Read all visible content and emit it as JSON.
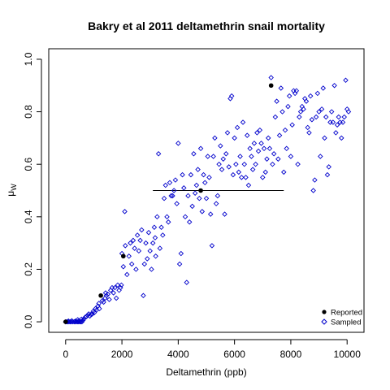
{
  "chart_data": {
    "type": "scatter",
    "title": "Bakry et al 2011 deltamethrin snail mortality",
    "xlabel": "Deltamethrin (ppb)",
    "ylabel": "μ_W",
    "xlim": [
      -600,
      10600
    ],
    "ylim": [
      -0.04,
      1.04
    ],
    "x_ticks": [
      0,
      2000,
      4000,
      6000,
      8000,
      10000
    ],
    "x_tick_labels": [
      "0",
      "2000",
      "4000",
      "6000",
      "8000",
      "10000"
    ],
    "y_ticks": [
      0.0,
      0.2,
      0.4,
      0.6,
      0.8,
      1.0
    ],
    "y_tick_labels": [
      "0.0",
      "0.2",
      "0.4",
      "0.6",
      "0.8",
      "1.0"
    ],
    "grid": false,
    "legend_position": "bottom-right",
    "colors": {
      "reported": "#000000",
      "sampled": "#0000cc"
    },
    "series": [
      {
        "name": "Reported",
        "marker": "filled-circle",
        "points": [
          {
            "x": 0,
            "y": 0.0
          },
          {
            "x": 1250,
            "y": 0.1
          },
          {
            "x": 2050,
            "y": 0.25
          },
          {
            "x": 4800,
            "y": 0.5
          },
          {
            "x": 7300,
            "y": 0.9
          }
        ]
      },
      {
        "name": "Sampled",
        "marker": "open-diamond",
        "points": [
          [
            0,
            0
          ],
          [
            0,
            0
          ],
          [
            40,
            0
          ],
          [
            80,
            0
          ],
          [
            120,
            0
          ],
          [
            160,
            0
          ],
          [
            200,
            0
          ],
          [
            250,
            0
          ],
          [
            300,
            0
          ],
          [
            330,
            0
          ],
          [
            380,
            0
          ],
          [
            420,
            0
          ],
          [
            460,
            0
          ],
          [
            500,
            0
          ],
          [
            540,
            0
          ],
          [
            580,
            0
          ],
          [
            100,
            0.003
          ],
          [
            220,
            0.004
          ],
          [
            350,
            0.003
          ],
          [
            480,
            0.004
          ],
          [
            620,
            0.006
          ],
          [
            430,
            0.008
          ],
          [
            560,
            0.01
          ],
          [
            650,
            0.012
          ],
          [
            700,
            0.018
          ],
          [
            740,
            0.02
          ],
          [
            780,
            0.025
          ],
          [
            820,
            0.03
          ],
          [
            860,
            0.022
          ],
          [
            900,
            0.028
          ],
          [
            950,
            0.03
          ],
          [
            980,
            0.04
          ],
          [
            1020,
            0.035
          ],
          [
            1060,
            0.05
          ],
          [
            1100,
            0.045
          ],
          [
            1150,
            0.06
          ],
          [
            1180,
            0.07
          ],
          [
            1200,
            0.05
          ],
          [
            1300,
            0.08
          ],
          [
            1350,
            0.075
          ],
          [
            1400,
            0.09
          ],
          [
            1420,
            0.11
          ],
          [
            1450,
            0.1
          ],
          [
            1500,
            0.105
          ],
          [
            1550,
            0.085
          ],
          [
            1600,
            0.12
          ],
          [
            1650,
            0.13
          ],
          [
            1700,
            0.11
          ],
          [
            1750,
            0.13
          ],
          [
            1800,
            0.09
          ],
          [
            1850,
            0.14
          ],
          [
            1900,
            0.12
          ],
          [
            1950,
            0.13
          ],
          [
            1980,
            0.14
          ],
          [
            2000,
            0.26
          ],
          [
            2050,
            0.21
          ],
          [
            2100,
            0.42
          ],
          [
            2120,
            0.29
          ],
          [
            2180,
            0.18
          ],
          [
            2250,
            0.25
          ],
          [
            2300,
            0.3
          ],
          [
            2350,
            0.22
          ],
          [
            2400,
            0.31
          ],
          [
            2450,
            0.28
          ],
          [
            2500,
            0.2
          ],
          [
            2550,
            0.33
          ],
          [
            2600,
            0.27
          ],
          [
            2650,
            0.31
          ],
          [
            2700,
            0.35
          ],
          [
            2760,
            0.1
          ],
          [
            2800,
            0.22
          ],
          [
            2850,
            0.3
          ],
          [
            2900,
            0.24
          ],
          [
            2950,
            0.34
          ],
          [
            3000,
            0.27
          ],
          [
            3050,
            0.2
          ],
          [
            3100,
            0.3
          ],
          [
            3150,
            0.36
          ],
          [
            3180,
            0.32
          ],
          [
            3200,
            0.25
          ],
          [
            3250,
            0.4
          ],
          [
            3300,
            0.64
          ],
          [
            3350,
            0.28
          ],
          [
            3400,
            0.36
          ],
          [
            3450,
            0.33
          ],
          [
            3500,
            0.47
          ],
          [
            3550,
            0.52
          ],
          [
            3600,
            0.4
          ],
          [
            3650,
            0.38
          ],
          [
            3700,
            0.53
          ],
          [
            3750,
            0.48
          ],
          [
            3800,
            0.48
          ],
          [
            3850,
            0.5
          ],
          [
            3900,
            0.54
          ],
          [
            3950,
            0.45
          ],
          [
            4000,
            0.68
          ],
          [
            4050,
            0.22
          ],
          [
            4100,
            0.26
          ],
          [
            4150,
            0.56
          ],
          [
            4200,
            0.51
          ],
          [
            4250,
            0.4
          ],
          [
            4300,
            0.15
          ],
          [
            4350,
            0.48
          ],
          [
            4400,
            0.38
          ],
          [
            4450,
            0.56
          ],
          [
            4500,
            0.44
          ],
          [
            4550,
            0.64
          ],
          [
            4600,
            0.49
          ],
          [
            4650,
            0.52
          ],
          [
            4700,
            0.58
          ],
          [
            4750,
            0.47
          ],
          [
            4800,
            0.66
          ],
          [
            4850,
            0.42
          ],
          [
            4900,
            0.56
          ],
          [
            4950,
            0.53
          ],
          [
            5000,
            0.47
          ],
          [
            5050,
            0.63
          ],
          [
            5100,
            0.55
          ],
          [
            5150,
            0.41
          ],
          [
            5200,
            0.29
          ],
          [
            5250,
            0.63
          ],
          [
            5300,
            0.7
          ],
          [
            5350,
            0.45
          ],
          [
            5400,
            0.48
          ],
          [
            5450,
            0.6
          ],
          [
            5500,
            0.67
          ],
          [
            5550,
            0.58
          ],
          [
            5600,
            0.62
          ],
          [
            5650,
            0.41
          ],
          [
            5700,
            0.64
          ],
          [
            5750,
            0.72
          ],
          [
            5800,
            0.59
          ],
          [
            5850,
            0.85
          ],
          [
            5900,
            0.86
          ],
          [
            5950,
            0.56
          ],
          [
            6000,
            0.7
          ],
          [
            6050,
            0.6
          ],
          [
            6100,
            0.74
          ],
          [
            6150,
            0.57
          ],
          [
            6200,
            0.63
          ],
          [
            6250,
            0.55
          ],
          [
            6300,
            0.76
          ],
          [
            6350,
            0.6
          ],
          [
            6400,
            0.55
          ],
          [
            6450,
            0.71
          ],
          [
            6500,
            0.52
          ],
          [
            6550,
            0.66
          ],
          [
            6600,
            0.63
          ],
          [
            6650,
            0.58
          ],
          [
            6700,
            0.68
          ],
          [
            6750,
            0.6
          ],
          [
            6800,
            0.72
          ],
          [
            6850,
            0.65
          ],
          [
            6900,
            0.73
          ],
          [
            6950,
            0.68
          ],
          [
            7000,
            0.55
          ],
          [
            7050,
            0.66
          ],
          [
            7100,
            0.57
          ],
          [
            7150,
            0.62
          ],
          [
            7200,
            0.7
          ],
          [
            7250,
            0.66
          ],
          [
            7300,
            0.93
          ],
          [
            7350,
            0.6
          ],
          [
            7400,
            0.64
          ],
          [
            7450,
            0.78
          ],
          [
            7500,
            0.84
          ],
          [
            7550,
            0.62
          ],
          [
            7600,
            0.71
          ],
          [
            7650,
            0.89
          ],
          [
            7700,
            0.8
          ],
          [
            7750,
            0.57
          ],
          [
            7800,
            0.73
          ],
          [
            7850,
            0.66
          ],
          [
            7900,
            0.82
          ],
          [
            7950,
            0.86
          ],
          [
            8000,
            0.63
          ],
          [
            8050,
            0.75
          ],
          [
            8100,
            0.88
          ],
          [
            8150,
            0.87
          ],
          [
            8200,
            0.88
          ],
          [
            8250,
            0.6
          ],
          [
            8300,
            0.78
          ],
          [
            8350,
            0.8
          ],
          [
            8400,
            0.82
          ],
          [
            8450,
            0.81
          ],
          [
            8500,
            0.85
          ],
          [
            8550,
            0.84
          ],
          [
            8600,
            0.74
          ],
          [
            8650,
            0.72
          ],
          [
            8700,
            0.86
          ],
          [
            8750,
            0.77
          ],
          [
            8800,
            0.5
          ],
          [
            8850,
            0.54
          ],
          [
            8900,
            0.78
          ],
          [
            8950,
            0.87
          ],
          [
            9000,
            0.8
          ],
          [
            9050,
            0.63
          ],
          [
            9100,
            0.81
          ],
          [
            9150,
            0.89
          ],
          [
            9200,
            0.7
          ],
          [
            9250,
            0.78
          ],
          [
            9300,
            0.56
          ],
          [
            9350,
            0.59
          ],
          [
            9400,
            0.76
          ],
          [
            9450,
            0.8
          ],
          [
            9500,
            0.76
          ],
          [
            9550,
            0.9
          ],
          [
            9600,
            0.72
          ],
          [
            9650,
            0.75
          ],
          [
            9700,
            0.78
          ],
          [
            9750,
            0.76
          ],
          [
            9800,
            0.7
          ],
          [
            9850,
            0.76
          ],
          [
            9900,
            0.78
          ],
          [
            9950,
            0.92
          ],
          [
            10000,
            0.81
          ],
          [
            10050,
            0.8
          ]
        ]
      }
    ],
    "error_bar": {
      "x_from": 3100,
      "x_to": 7750,
      "y": 0.5
    }
  }
}
